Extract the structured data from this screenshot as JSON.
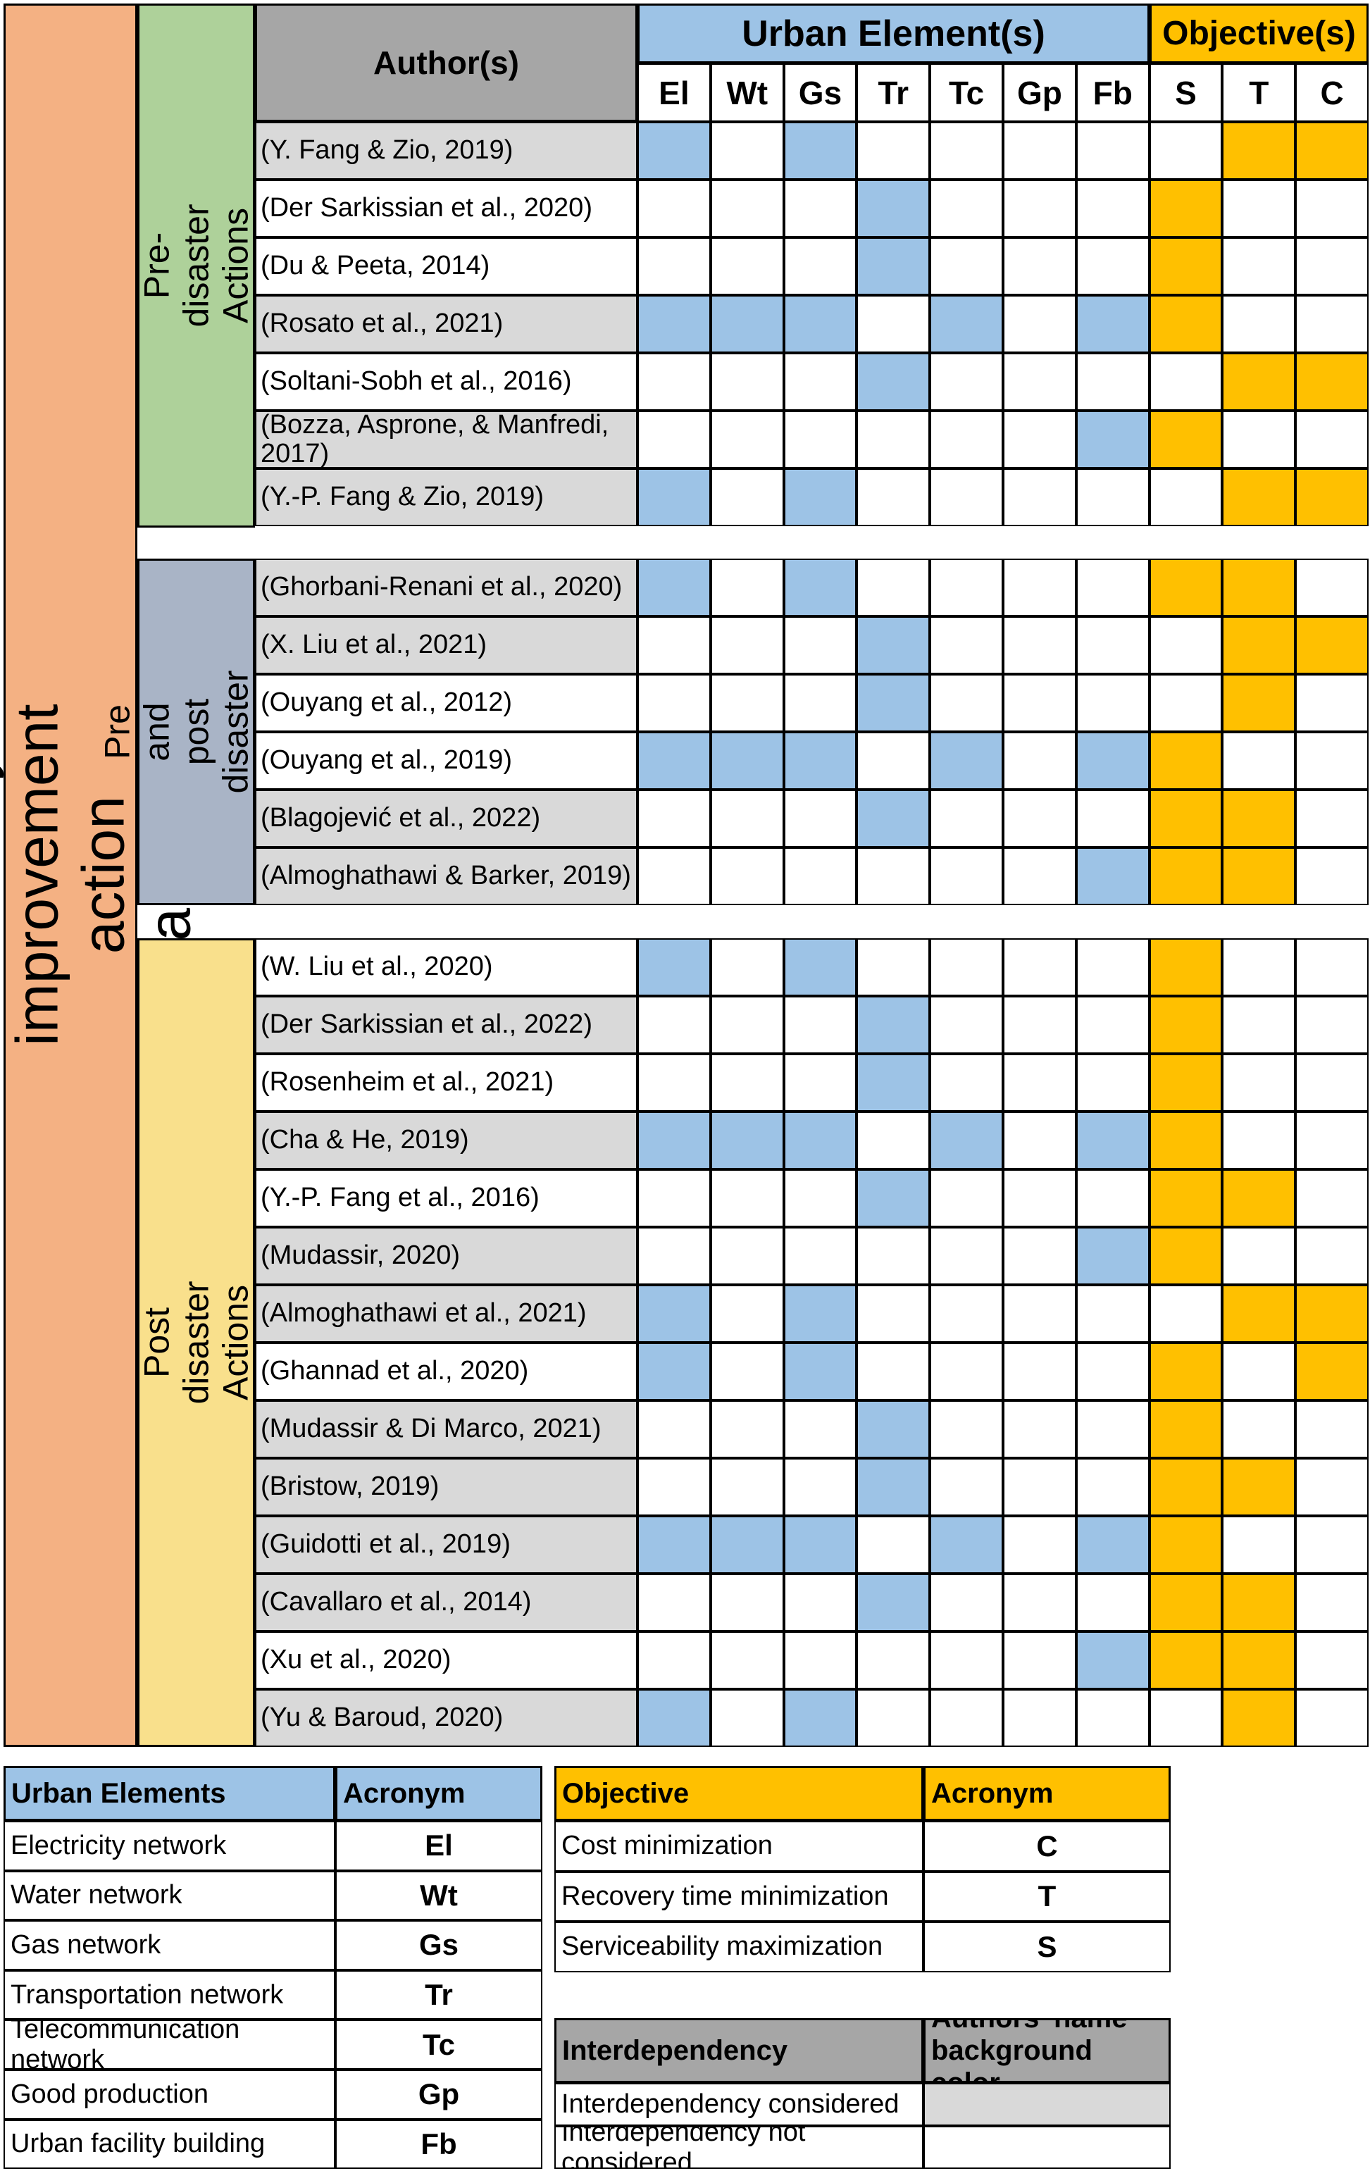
{
  "figure": {
    "main_title": "Recovery improvement action planning",
    "headers": {
      "author": "Author(s)",
      "urban_elements": "Urban Element(s)",
      "objectives": "Objective(s)"
    },
    "element_columns": [
      "El",
      "Wt",
      "Gs",
      "Tr",
      "Tc",
      "Gp",
      "Fb"
    ],
    "objective_columns": [
      "S",
      "T",
      "C"
    ],
    "groups": [
      {
        "label": "Pre-disaster Actions",
        "rows": [
          {
            "author": "(Y. Fang & Zio, 2019)",
            "interdependency": true,
            "elements": [
              "El",
              "Gs"
            ],
            "objectives": [
              "T",
              "C"
            ]
          },
          {
            "author": "(Der Sarkissian et al., 2020)",
            "interdependency": false,
            "elements": [
              "Tr"
            ],
            "objectives": [
              "S"
            ]
          },
          {
            "author": "(Du & Peeta, 2014)",
            "interdependency": false,
            "elements": [
              "Tr"
            ],
            "objectives": [
              "S"
            ]
          },
          {
            "author": "(Rosato et al., 2021)",
            "interdependency": true,
            "elements": [
              "El",
              "Wt",
              "Gs",
              "Tc",
              "Fb"
            ],
            "objectives": [
              "S"
            ]
          },
          {
            "author": "(Soltani-Sobh et al., 2016)",
            "interdependency": false,
            "elements": [
              "Tr"
            ],
            "objectives": [
              "T",
              "C"
            ]
          },
          {
            "author": "(Bozza, Asprone, & Manfredi, 2017)",
            "interdependency": true,
            "elements": [
              "Fb"
            ],
            "objectives": [
              "S"
            ]
          },
          {
            "author": "(Y.-P. Fang & Zio, 2019)",
            "interdependency": true,
            "elements": [
              "El",
              "Gs"
            ],
            "objectives": [
              "T",
              "C"
            ]
          }
        ]
      },
      {
        "label": "Pre and post\ndisaster Actions",
        "rows": [
          {
            "author": "(Ghorbani-Renani et al., 2020)",
            "interdependency": true,
            "elements": [
              "El",
              "Gs"
            ],
            "objectives": [
              "S",
              "T"
            ]
          },
          {
            "author": "(X. Liu et al., 2021)",
            "interdependency": true,
            "elements": [
              "Tr"
            ],
            "objectives": [
              "T",
              "C"
            ]
          },
          {
            "author": "(Ouyang et al., 2012)",
            "interdependency": false,
            "elements": [
              "Tr"
            ],
            "objectives": [
              "T"
            ]
          },
          {
            "author": "(Ouyang et al., 2019)",
            "interdependency": false,
            "elements": [
              "El",
              "Wt",
              "Gs",
              "Tc",
              "Fb"
            ],
            "objectives": [
              "S"
            ]
          },
          {
            "author": "(Blagojević et al., 2022)",
            "interdependency": true,
            "elements": [
              "Tr"
            ],
            "objectives": [
              "S",
              "T"
            ]
          },
          {
            "author": "(Almoghathawi & Barker, 2019)",
            "interdependency": true,
            "elements": [
              "Fb"
            ],
            "objectives": [
              "S",
              "T"
            ]
          }
        ]
      },
      {
        "label": "Post disaster Actions",
        "rows": [
          {
            "author": "(W. Liu et al., 2020)",
            "interdependency": false,
            "elements": [
              "El",
              "Gs"
            ],
            "objectives": [
              "S"
            ]
          },
          {
            "author": "(Der Sarkissian et al., 2022)",
            "interdependency": true,
            "elements": [
              "Tr"
            ],
            "objectives": [
              "S"
            ]
          },
          {
            "author": "(Rosenheim et al., 2021)",
            "interdependency": false,
            "elements": [
              "Tr"
            ],
            "objectives": [
              "S"
            ]
          },
          {
            "author": "(Cha & He, 2019)",
            "interdependency": true,
            "elements": [
              "El",
              "Wt",
              "Gs",
              "Tc",
              "Fb"
            ],
            "objectives": [
              "S"
            ]
          },
          {
            "author": "(Y.-P. Fang et al., 2016)",
            "interdependency": false,
            "elements": [
              "Tr"
            ],
            "objectives": [
              "S",
              "T"
            ]
          },
          {
            "author": "(Mudassir, 2020)",
            "interdependency": true,
            "elements": [
              "Fb"
            ],
            "objectives": [
              "S"
            ]
          },
          {
            "author": "(Almoghathawi et al., 2021)",
            "interdependency": true,
            "elements": [
              "El",
              "Gs"
            ],
            "objectives": [
              "T",
              "C"
            ]
          },
          {
            "author": "(Ghannad et al., 2020)",
            "interdependency": false,
            "elements": [
              "El",
              "Gs"
            ],
            "objectives": [
              "S",
              "C"
            ]
          },
          {
            "author": "(Mudassir & Di Marco, 2021)",
            "interdependency": true,
            "elements": [
              "Tr"
            ],
            "objectives": [
              "S"
            ]
          },
          {
            "author": "(Bristow, 2019)",
            "interdependency": true,
            "elements": [
              "Tr"
            ],
            "objectives": [
              "S",
              "T"
            ]
          },
          {
            "author": "(Guidotti et al., 2019)",
            "interdependency": true,
            "elements": [
              "El",
              "Wt",
              "Gs",
              "Tc",
              "Fb"
            ],
            "objectives": [
              "S"
            ]
          },
          {
            "author": "(Cavallaro et al., 2014)",
            "interdependency": true,
            "elements": [
              "Tr"
            ],
            "objectives": [
              "S",
              "T"
            ]
          },
          {
            "author": "(Xu et al., 2020)",
            "interdependency": false,
            "elements": [
              "Fb"
            ],
            "objectives": [
              "S",
              "T"
            ]
          },
          {
            "author": "(Yu & Baroud, 2020)",
            "interdependency": true,
            "elements": [
              "El",
              "Gs"
            ],
            "objectives": [
              "T"
            ]
          }
        ]
      }
    ]
  },
  "legend_urban": {
    "title": "Urban Elements",
    "acronym_header": "Acronym",
    "rows": [
      {
        "name": "Electricity network",
        "acronym": "El"
      },
      {
        "name": "Water network",
        "acronym": "Wt"
      },
      {
        "name": "Gas network",
        "acronym": "Gs"
      },
      {
        "name": "Transportation network",
        "acronym": "Tr"
      },
      {
        "name": "Telecommunication network",
        "acronym": "Tc"
      },
      {
        "name": "Good production",
        "acronym": "Gp"
      },
      {
        "name": "Urban facility building",
        "acronym": "Fb"
      }
    ]
  },
  "legend_objective": {
    "title": "Objective",
    "acronym_header": "Acronym",
    "rows": [
      {
        "name": "Cost minimization",
        "acronym": "C"
      },
      {
        "name": "Recovery time minimization",
        "acronym": "T"
      },
      {
        "name": "Serviceability maximization",
        "acronym": "S"
      }
    ]
  },
  "legend_interdependency": {
    "title": "Interdependency",
    "col2_header": "Authors' name background color",
    "rows": [
      {
        "label": "Interdependency considered",
        "swatch": "#D9D9D9"
      },
      {
        "label": "Interdependency not considered",
        "swatch": "#FFFFFF"
      }
    ]
  },
  "colors": {
    "element_cell": "#9DC3E6",
    "objective_cell": "#FFC000",
    "band_orange": "#F4B183",
    "band_green": "#AED19A",
    "band_bluegray": "#A9B4C6",
    "band_yellow": "#F9E08C",
    "header_gray": "#A6A6A6",
    "interdep_gray": "#D9D9D9",
    "legend_blue": "#9DC3E6",
    "legend_orange": "#FFC000"
  }
}
